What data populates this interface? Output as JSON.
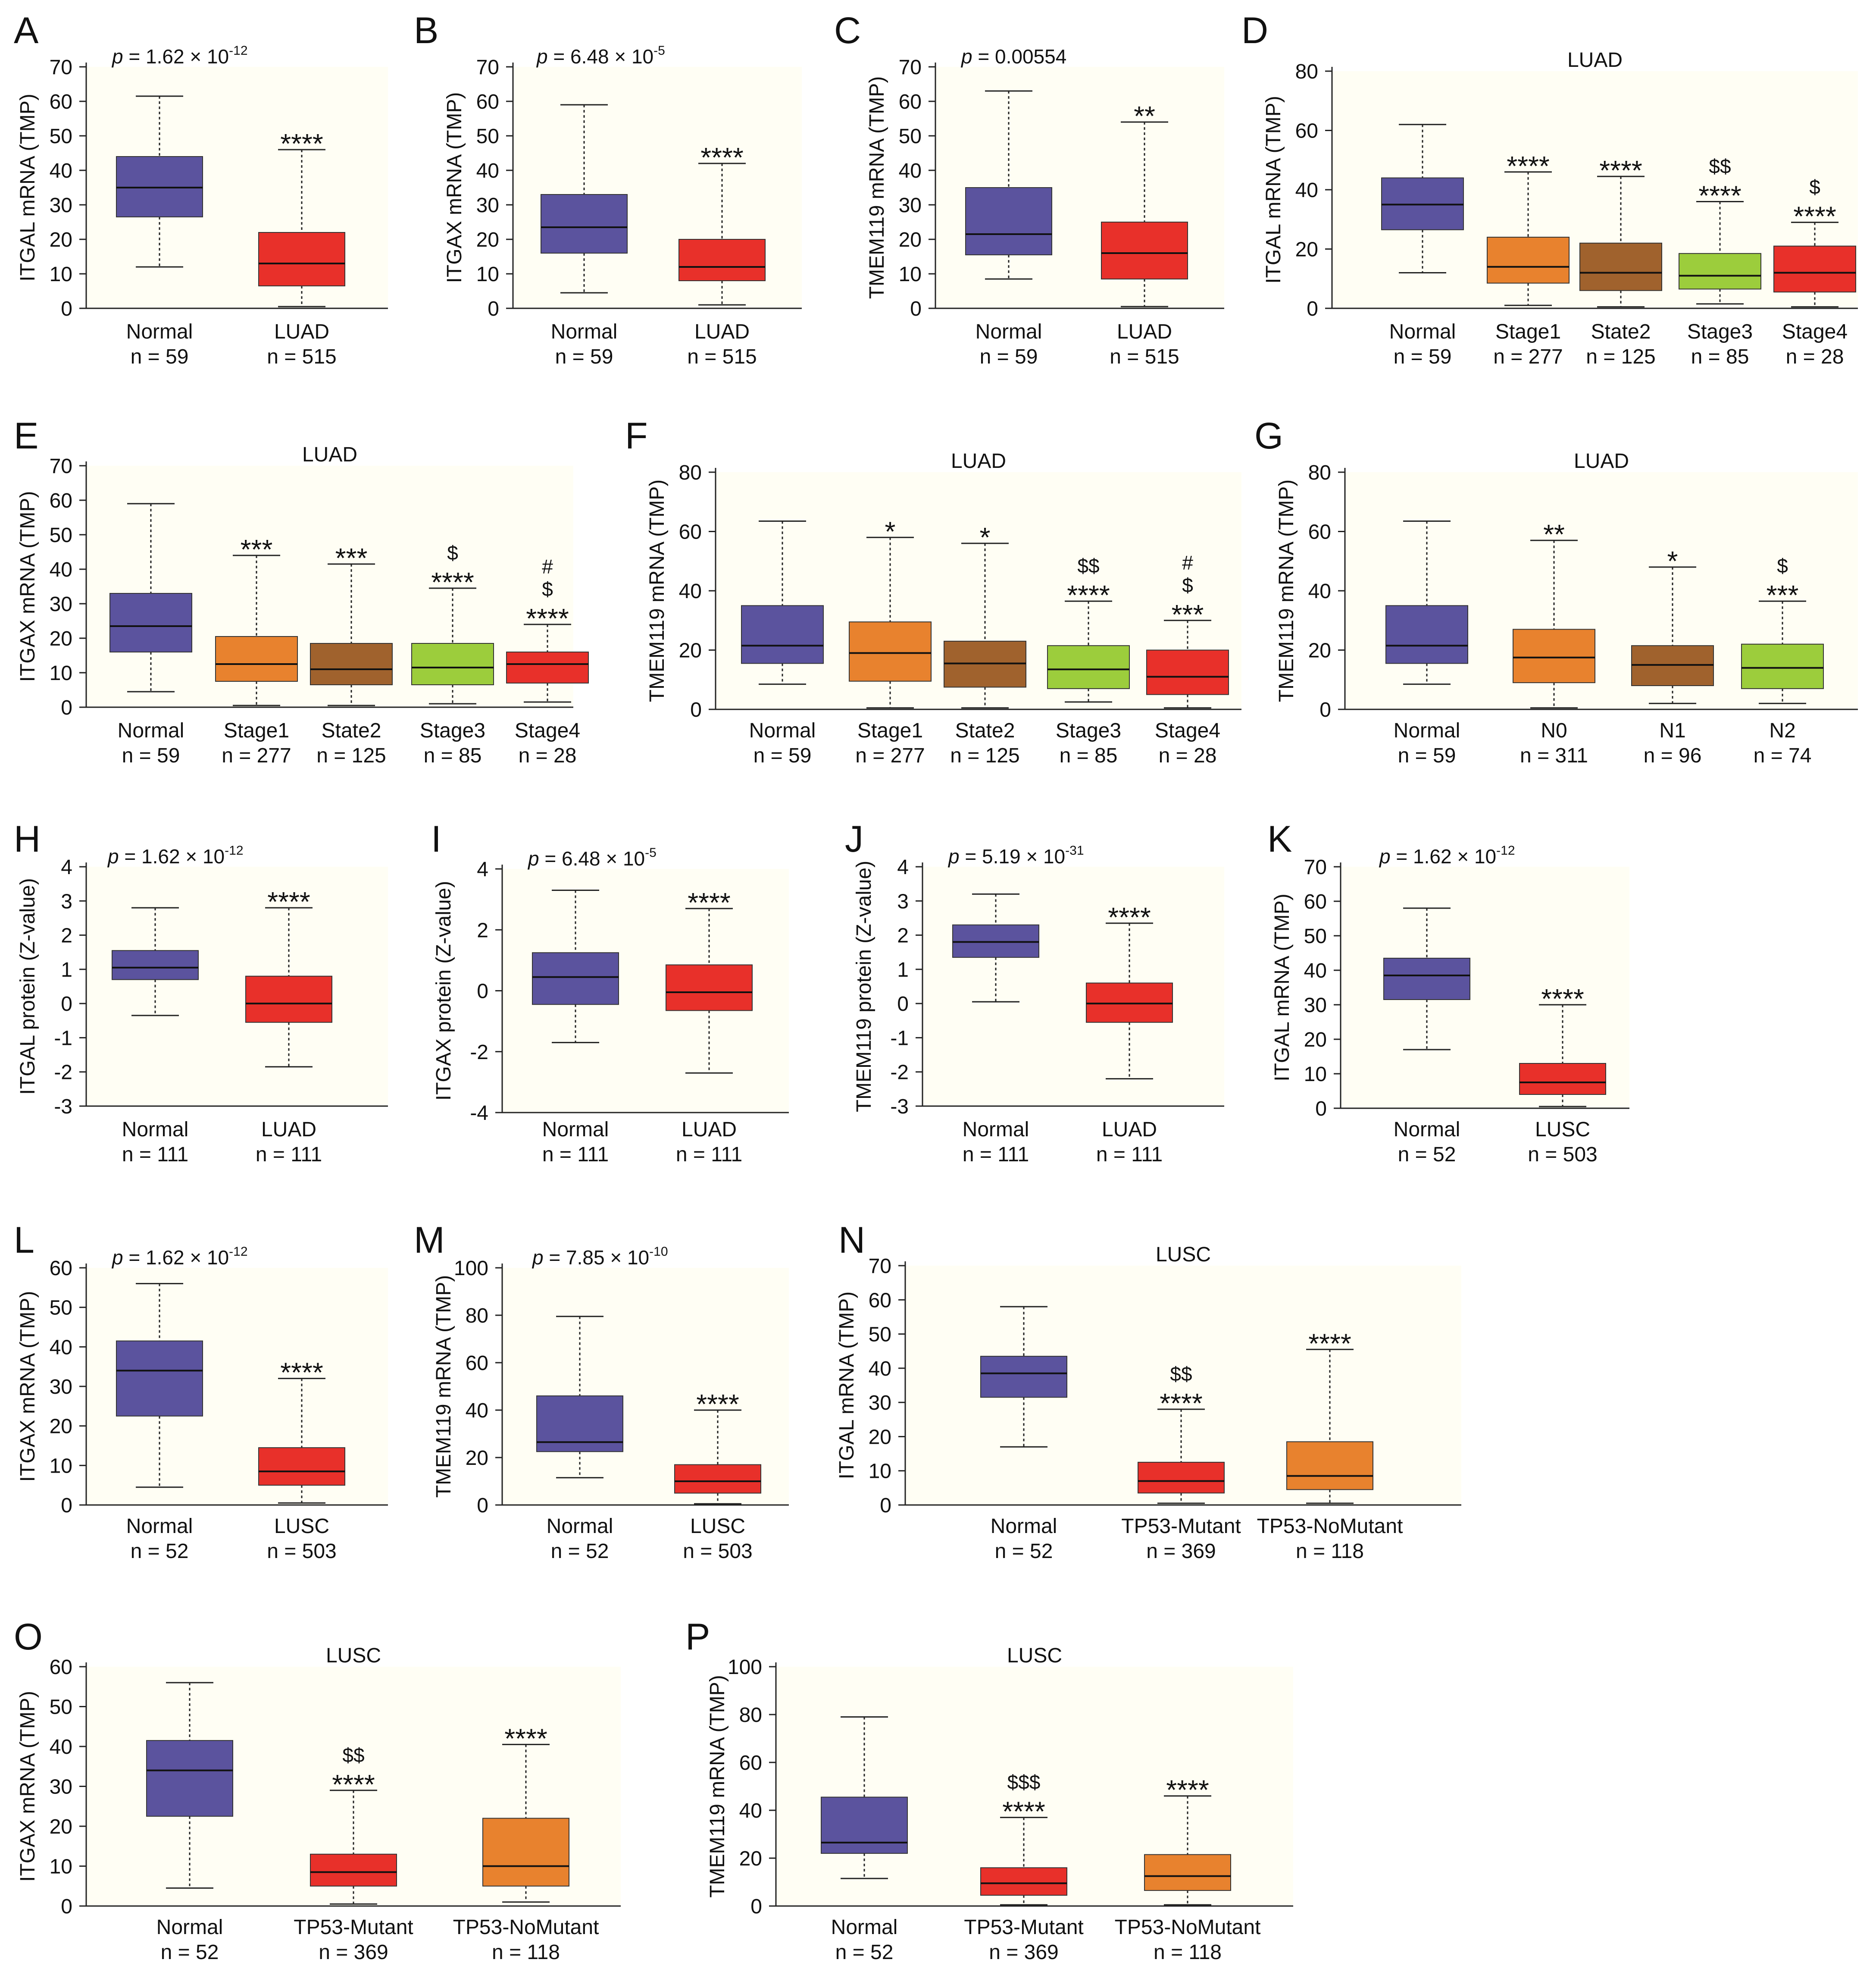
{
  "figure": {
    "colors": {
      "normal": "#5b539e",
      "tumor": "#e8302a",
      "stage1": "#e8822e",
      "stage2": "#a0622d",
      "stage3": "#9ccd3c",
      "stage4": "#e8302a",
      "background": "#fffef4"
    }
  },
  "chart_data": [
    {
      "label": "A",
      "type": "box",
      "ylabel": "ITGAL mRNA (TMP)",
      "ylim": [
        0,
        70
      ],
      "ticks": [
        0,
        10,
        20,
        30,
        40,
        50,
        60,
        70
      ],
      "title": "",
      "pvalue": {
        "base": "1.62 × 10",
        "exp": "-12",
        "plain": ""
      },
      "groups": [
        {
          "name": "Normal",
          "n": "n = 59",
          "color": "normal",
          "stats": [
            12,
            26.5,
            35,
            44,
            61.5
          ],
          "marks": []
        },
        {
          "name": "LUAD",
          "n": "n = 515",
          "color": "tumor",
          "stats": [
            0.5,
            6.5,
            13,
            22,
            46
          ],
          "marks": [
            "****"
          ]
        }
      ]
    },
    {
      "label": "B",
      "type": "box",
      "ylabel": "ITGAX mRNA (TMP)",
      "ylim": [
        0,
        70
      ],
      "ticks": [
        0,
        10,
        20,
        30,
        40,
        50,
        60,
        70
      ],
      "title": "",
      "pvalue": {
        "base": "6.48 × 10",
        "exp": "-5",
        "plain": ""
      },
      "groups": [
        {
          "name": "Normal",
          "n": "n = 59",
          "color": "normal",
          "stats": [
            4.5,
            16,
            23.5,
            33,
            59
          ],
          "marks": []
        },
        {
          "name": "LUAD",
          "n": "n = 515",
          "color": "tumor",
          "stats": [
            1,
            8,
            12,
            20,
            42
          ],
          "marks": [
            "****"
          ]
        }
      ]
    },
    {
      "label": "C",
      "type": "box",
      "ylabel": "TMEM119 mRNA (TMP)",
      "ylim": [
        0,
        70
      ],
      "ticks": [
        0,
        10,
        20,
        30,
        40,
        50,
        60,
        70
      ],
      "title": "",
      "pvalue": {
        "base": "",
        "exp": "",
        "plain": "0.00554"
      },
      "groups": [
        {
          "name": "Normal",
          "n": "n = 59",
          "color": "normal",
          "stats": [
            8.5,
            15.5,
            21.5,
            35,
            63
          ],
          "marks": []
        },
        {
          "name": "LUAD",
          "n": "n = 515",
          "color": "tumor",
          "stats": [
            0.5,
            8.5,
            16,
            25,
            54
          ],
          "marks": [
            "**"
          ]
        }
      ]
    },
    {
      "label": "D",
      "type": "box",
      "ylabel": "ITGAL mRNA (TMP)",
      "ylim": [
        0,
        80
      ],
      "ticks": [
        0,
        20,
        40,
        60,
        80
      ],
      "title": "LUAD",
      "pvalue": null,
      "groups": [
        {
          "name": "Normal",
          "n": "n = 59",
          "color": "normal",
          "stats": [
            12,
            26.5,
            35,
            44,
            62
          ],
          "marks": []
        },
        {
          "name": "Stage1",
          "n": "n = 277",
          "color": "stage1",
          "stats": [
            1,
            8.5,
            14,
            24,
            46
          ],
          "marks": [
            "****"
          ]
        },
        {
          "name": "State2",
          "n": "n = 125",
          "color": "stage2",
          "stats": [
            0.5,
            6,
            12,
            22,
            44.5
          ],
          "marks": [
            "****"
          ]
        },
        {
          "name": "Stage3",
          "n": "n = 85",
          "color": "stage3",
          "stats": [
            1.5,
            6.5,
            11,
            18.5,
            36
          ],
          "marks": [
            "****",
            "$$"
          ]
        },
        {
          "name": "Stage4",
          "n": "n = 28",
          "color": "stage4",
          "stats": [
            0.5,
            5.5,
            12,
            21,
            29
          ],
          "marks": [
            "****",
            "$"
          ]
        }
      ]
    },
    {
      "label": "E",
      "type": "box",
      "ylabel": "ITGAX mRNA (TMP)",
      "ylim": [
        0,
        70
      ],
      "ticks": [
        0,
        10,
        20,
        30,
        40,
        50,
        60,
        70
      ],
      "title": "LUAD",
      "pvalue": null,
      "groups": [
        {
          "name": "Normal",
          "n": "n = 59",
          "color": "normal",
          "stats": [
            4.5,
            16,
            23.5,
            33,
            59
          ],
          "marks": []
        },
        {
          "name": "Stage1",
          "n": "n = 277",
          "color": "stage1",
          "stats": [
            0.5,
            7.5,
            12.5,
            20.5,
            44
          ],
          "marks": [
            "***"
          ]
        },
        {
          "name": "State2",
          "n": "n = 125",
          "color": "stage2",
          "stats": [
            0.5,
            6.5,
            11,
            18.5,
            41.5
          ],
          "marks": [
            "***"
          ]
        },
        {
          "name": "Stage3",
          "n": "n = 85",
          "color": "stage3",
          "stats": [
            1,
            6.5,
            11.5,
            18.5,
            34.5
          ],
          "marks": [
            "****",
            "$"
          ]
        },
        {
          "name": "Stage4",
          "n": "n = 28",
          "color": "stage4",
          "stats": [
            1.5,
            7,
            12.5,
            16,
            24
          ],
          "marks": [
            "****",
            "$",
            "#"
          ]
        }
      ]
    },
    {
      "label": "F",
      "type": "box",
      "ylabel": "TMEM119 mRNA (TMP)",
      "ylim": [
        0,
        80
      ],
      "ticks": [
        0,
        20,
        40,
        60,
        80
      ],
      "title": "LUAD",
      "pvalue": null,
      "groups": [
        {
          "name": "Normal",
          "n": "n = 59",
          "color": "normal",
          "stats": [
            8.5,
            15.5,
            21.5,
            35,
            63.5
          ],
          "marks": []
        },
        {
          "name": "Stage1",
          "n": "n = 277",
          "color": "stage1",
          "stats": [
            0.5,
            9.5,
            19,
            29.5,
            58
          ],
          "marks": [
            "*"
          ]
        },
        {
          "name": "State2",
          "n": "n = 125",
          "color": "stage2",
          "stats": [
            0.5,
            7.5,
            15.5,
            23,
            56
          ],
          "marks": [
            "*"
          ]
        },
        {
          "name": "Stage3",
          "n": "n = 85",
          "color": "stage3",
          "stats": [
            2.5,
            7,
            13.5,
            21.5,
            36.5
          ],
          "marks": [
            "****",
            "$$"
          ]
        },
        {
          "name": "Stage4",
          "n": "n = 28",
          "color": "stage4",
          "stats": [
            0.5,
            5,
            11,
            20,
            30
          ],
          "marks": [
            "***",
            "$",
            "#"
          ]
        }
      ]
    },
    {
      "label": "G",
      "type": "box",
      "ylabel": "TMEM119 mRNA (TMP)",
      "ylim": [
        0,
        80
      ],
      "ticks": [
        0,
        20,
        40,
        60,
        80
      ],
      "title": "LUAD",
      "pvalue": null,
      "groups": [
        {
          "name": "Normal",
          "n": "n = 59",
          "color": "normal",
          "stats": [
            8.5,
            15.5,
            21.5,
            35,
            63.5
          ],
          "marks": []
        },
        {
          "name": "N0",
          "n": "n = 311",
          "color": "stage1",
          "stats": [
            0.5,
            9,
            17.5,
            27,
            57
          ],
          "marks": [
            "**"
          ]
        },
        {
          "name": "N1",
          "n": "n = 96",
          "color": "stage2",
          "stats": [
            2,
            8,
            15,
            21.5,
            48
          ],
          "marks": [
            "*"
          ]
        },
        {
          "name": "N2",
          "n": "n = 74",
          "color": "stage3",
          "stats": [
            2,
            7,
            14,
            22,
            36.5
          ],
          "marks": [
            "***",
            "$"
          ]
        }
      ]
    },
    {
      "label": "H",
      "type": "box",
      "ylabel": "ITGAL protein (Z-value)",
      "ylim": [
        -3,
        4
      ],
      "ticks": [
        -3,
        -2,
        -1,
        0,
        1,
        2,
        3,
        4
      ],
      "title": "",
      "pvalue": {
        "base": "1.62 × 10",
        "exp": "-12",
        "plain": ""
      },
      "groups": [
        {
          "name": "Normal",
          "n": "n = 111",
          "color": "normal",
          "stats": [
            -0.35,
            0.7,
            1.05,
            1.55,
            2.8
          ],
          "marks": []
        },
        {
          "name": "LUAD",
          "n": "n = 111",
          "color": "tumor",
          "stats": [
            -1.85,
            -0.55,
            0,
            0.8,
            2.8
          ],
          "marks": [
            "****"
          ]
        }
      ]
    },
    {
      "label": "I",
      "type": "box",
      "ylabel": "ITGAX protein (Z-value)",
      "ylim": [
        -4,
        4
      ],
      "ticks": [
        -4,
        -2,
        0,
        2,
        4
      ],
      "title": "",
      "pvalue": {
        "base": "6.48 × 10",
        "exp": "-5",
        "plain": ""
      },
      "groups": [
        {
          "name": "Normal",
          "n": "n = 111",
          "color": "normal",
          "stats": [
            -1.7,
            -0.45,
            0.45,
            1.25,
            3.3
          ],
          "marks": []
        },
        {
          "name": "LUAD",
          "n": "n = 111",
          "color": "tumor",
          "stats": [
            -2.7,
            -0.65,
            -0.05,
            0.85,
            2.7
          ],
          "marks": [
            "****"
          ]
        }
      ]
    },
    {
      "label": "J",
      "type": "box",
      "ylabel": "TMEM119 protein (Z-value)",
      "ylim": [
        -3,
        4
      ],
      "ticks": [
        -3,
        -2,
        -1,
        0,
        1,
        2,
        3,
        4
      ],
      "title": "",
      "pvalue": {
        "base": "5.19 × 10",
        "exp": "-31",
        "plain": ""
      },
      "groups": [
        {
          "name": "Normal",
          "n": "n = 111",
          "color": "normal",
          "stats": [
            0.05,
            1.35,
            1.8,
            2.3,
            3.2
          ],
          "marks": []
        },
        {
          "name": "LUAD",
          "n": "n = 111",
          "color": "tumor",
          "stats": [
            -2.2,
            -0.55,
            0,
            0.6,
            2.35
          ],
          "marks": [
            "****"
          ]
        }
      ]
    },
    {
      "label": "K",
      "type": "box",
      "ylabel": "ITGAL mRNA (TMP)",
      "ylim": [
        0,
        70
      ],
      "ticks": [
        0,
        10,
        20,
        30,
        40,
        50,
        60,
        70
      ],
      "title": "",
      "pvalue": {
        "base": "1.62 × 10",
        "exp": "-12",
        "plain": ""
      },
      "groups": [
        {
          "name": "Normal",
          "n": "n = 52",
          "color": "normal",
          "stats": [
            17,
            31.5,
            38.5,
            43.5,
            58
          ],
          "marks": []
        },
        {
          "name": "LUSC",
          "n": "n = 503",
          "color": "tumor",
          "stats": [
            0.5,
            4,
            7.5,
            13,
            30
          ],
          "marks": [
            "****"
          ]
        }
      ]
    },
    {
      "label": "L",
      "type": "box",
      "ylabel": "ITGAX mRNA (TMP)",
      "ylim": [
        0,
        60
      ],
      "ticks": [
        0,
        10,
        20,
        30,
        40,
        50,
        60
      ],
      "title": "",
      "pvalue": {
        "base": "1.62 × 10",
        "exp": "-12",
        "plain": ""
      },
      "groups": [
        {
          "name": "Normal",
          "n": "n = 52",
          "color": "normal",
          "stats": [
            4.5,
            22.5,
            34,
            41.5,
            56
          ],
          "marks": []
        },
        {
          "name": "LUSC",
          "n": "n = 503",
          "color": "tumor",
          "stats": [
            0.5,
            5,
            8.5,
            14.5,
            32
          ],
          "marks": [
            "****"
          ]
        }
      ]
    },
    {
      "label": "M",
      "type": "box",
      "ylabel": "TMEM119 mRNA (TMP)",
      "ylim": [
        0,
        100
      ],
      "ticks": [
        0,
        20,
        40,
        60,
        80,
        100
      ],
      "title": "",
      "pvalue": {
        "base": "7.85 × 10",
        "exp": "-10",
        "plain": ""
      },
      "groups": [
        {
          "name": "Normal",
          "n": "n = 52",
          "color": "normal",
          "stats": [
            11.5,
            22.5,
            26.5,
            46,
            79.5
          ],
          "marks": []
        },
        {
          "name": "LUSC",
          "n": "n = 503",
          "color": "tumor",
          "stats": [
            0.5,
            5,
            10,
            17,
            40
          ],
          "marks": [
            "****"
          ]
        }
      ]
    },
    {
      "label": "N",
      "type": "box",
      "ylabel": "ITGAL mRNA (TMP)",
      "ylim": [
        0,
        70
      ],
      "ticks": [
        0,
        10,
        20,
        30,
        40,
        50,
        60,
        70
      ],
      "title": "LUSC",
      "pvalue": null,
      "groups": [
        {
          "name": "Normal",
          "n": "n = 52",
          "color": "normal",
          "stats": [
            17,
            31.5,
            38.5,
            43.5,
            58
          ],
          "marks": []
        },
        {
          "name": "TP53-Mutant",
          "n": "n = 369",
          "color": "tumor",
          "stats": [
            0.5,
            3.5,
            7,
            12.5,
            28
          ],
          "marks": [
            "****",
            "$$"
          ]
        },
        {
          "name": "TP53-NoMutant",
          "n": "n = 118",
          "color": "stage1",
          "stats": [
            0.5,
            4.5,
            8.5,
            18.5,
            45.5
          ],
          "marks": [
            "****"
          ]
        }
      ]
    },
    {
      "label": "O",
      "type": "box",
      "ylabel": "ITGAX mRNA (TMP)",
      "ylim": [
        0,
        60
      ],
      "ticks": [
        0,
        10,
        20,
        30,
        40,
        50,
        60
      ],
      "title": "LUSC",
      "pvalue": null,
      "groups": [
        {
          "name": "Normal",
          "n": "n = 52",
          "color": "normal",
          "stats": [
            4.5,
            22.5,
            34,
            41.5,
            56
          ],
          "marks": []
        },
        {
          "name": "TP53-Mutant",
          "n": "n = 369",
          "color": "tumor",
          "stats": [
            0.5,
            5,
            8.5,
            13,
            29
          ],
          "marks": [
            "****",
            "$$"
          ]
        },
        {
          "name": "TP53-NoMutant",
          "n": "n = 118",
          "color": "stage1",
          "stats": [
            1,
            5,
            10,
            22,
            40.5
          ],
          "marks": [
            "****"
          ]
        }
      ]
    },
    {
      "label": "P",
      "type": "box",
      "ylabel": "TMEM119 mRNA (TMP)",
      "ylim": [
        0,
        100
      ],
      "ticks": [
        0,
        20,
        40,
        60,
        80,
        100
      ],
      "title": "LUSC",
      "pvalue": null,
      "groups": [
        {
          "name": "Normal",
          "n": "n = 52",
          "color": "normal",
          "stats": [
            11.5,
            22,
            26.5,
            45.5,
            79
          ],
          "marks": []
        },
        {
          "name": "TP53-Mutant",
          "n": "n = 369",
          "color": "tumor",
          "stats": [
            0.5,
            4.5,
            9.5,
            16,
            37
          ],
          "marks": [
            "****",
            "$$$"
          ]
        },
        {
          "name": "TP53-NoMutant",
          "n": "n = 118",
          "color": "stage1",
          "stats": [
            0.5,
            6.5,
            12.5,
            21.5,
            46
          ],
          "marks": [
            "****"
          ]
        }
      ]
    }
  ]
}
